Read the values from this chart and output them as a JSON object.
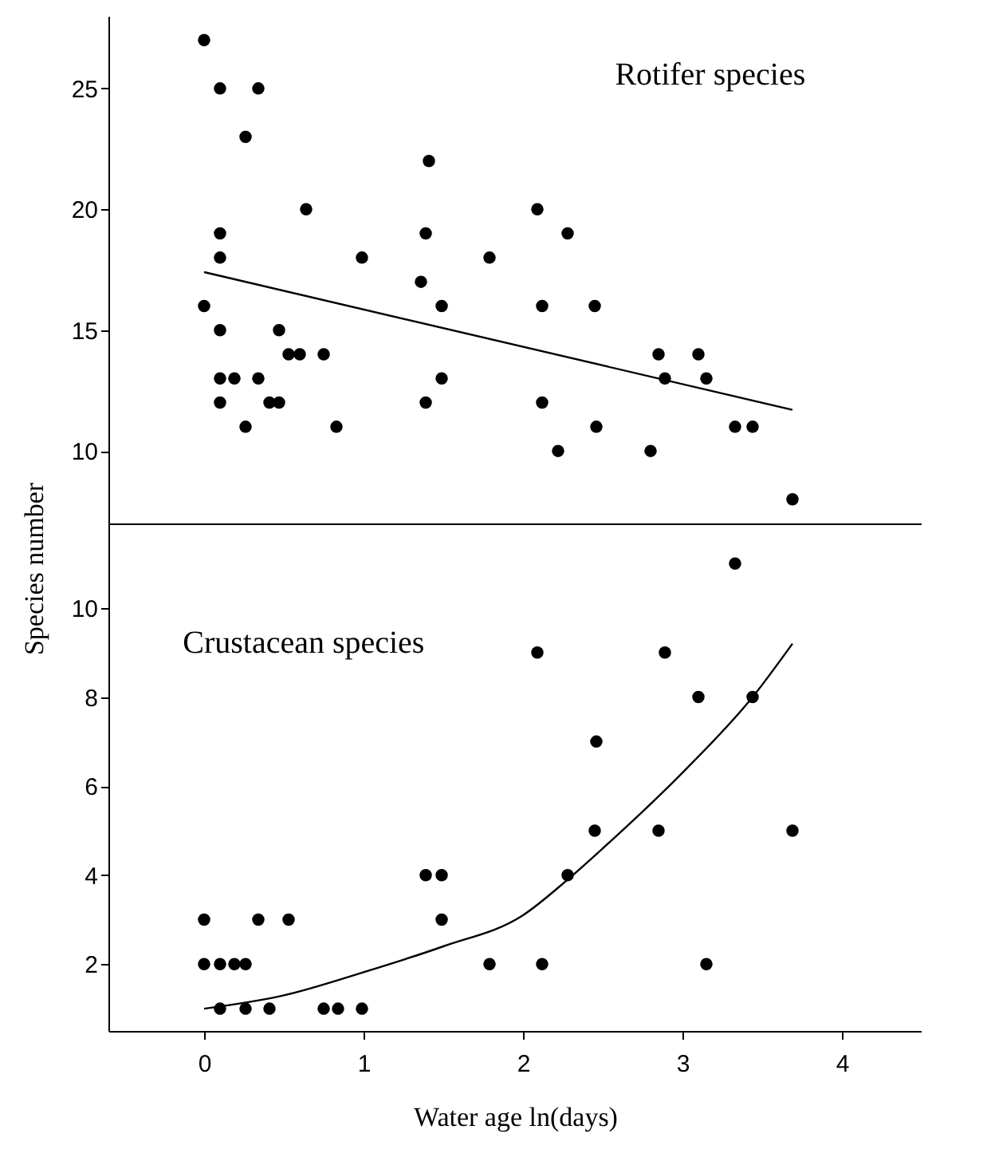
{
  "chart_data": [
    {
      "type": "scatter",
      "xlim": [
        -0.6,
        4.5
      ],
      "ylim": [
        7,
        28
      ],
      "yticks": [
        10,
        15,
        20,
        25
      ],
      "tick_labels": "y",
      "ylabel": "Species number",
      "annotations": [
        "Rotifer species"
      ],
      "grid": false,
      "series": [
        {
          "type": "scatter",
          "marker": "circle",
          "color": "#000000",
          "x": [
            0,
            0.1,
            0.34,
            0.26,
            0.64,
            0.1,
            1.39,
            0.1,
            0.99,
            1.79,
            1.41,
            1.36,
            0,
            1.49,
            0.1,
            0.47,
            0.1,
            0.19,
            0.34,
            1.49,
            0.53,
            0.6,
            0.75,
            0.1,
            0.41,
            0.47,
            1.39,
            0.26,
            0.83,
            2.09,
            2.28,
            2.12,
            2.45,
            2.85,
            3.1,
            2.89,
            3.15,
            2.12,
            2.46,
            3.33,
            3.44,
            2.22,
            2.8,
            3.69
          ],
          "values": [
            27,
            25,
            25,
            23,
            20,
            19,
            19,
            18,
            18,
            18,
            22,
            17,
            16,
            16,
            15,
            15,
            13,
            13,
            13,
            13,
            14,
            14,
            14,
            12,
            12,
            12,
            12,
            11,
            11,
            20,
            19,
            16,
            16,
            14,
            14,
            13,
            13,
            12,
            11,
            11,
            11,
            10,
            10,
            8
          ]
        },
        {
          "type": "line",
          "marker": "none",
          "line_style": "solid",
          "color": "#000000",
          "x": [
            0,
            3.69
          ],
          "values": [
            17.4,
            11.7
          ]
        }
      ]
    },
    {
      "type": "scatter",
      "xlim": [
        -0.6,
        4.5
      ],
      "ylim": [
        0.5,
        11.9
      ],
      "xticks": [
        0,
        1,
        2,
        3,
        4
      ],
      "yticks": [
        2,
        4,
        6,
        8,
        10
      ],
      "xlabel": "Water age ln(days)",
      "annotations": [
        "Crustacean species"
      ],
      "grid": false,
      "series": [
        {
          "type": "scatter",
          "marker": "circle",
          "color": "#000000",
          "x": [
            0.1,
            0.26,
            0.41,
            0.75,
            0.84,
            0.99,
            0,
            0.1,
            0.19,
            0.26,
            1.79,
            2.12,
            3.15,
            0,
            0.34,
            0.53,
            1.49,
            1.39,
            1.49,
            2.28,
            2.45,
            2.85,
            3.69,
            2.46,
            3.1,
            3.44,
            2.09,
            2.89,
            3.33
          ],
          "values": [
            1,
            1,
            1,
            1,
            1,
            1,
            2,
            2,
            2,
            2,
            2,
            2,
            2,
            3,
            3,
            3,
            3,
            4,
            4,
            4,
            5,
            5,
            5,
            7,
            8,
            8,
            9,
            9,
            11
          ]
        },
        {
          "type": "line",
          "marker": "none",
          "line_style": "solid",
          "color": "#000000",
          "x": [
            0,
            0.5,
            1,
            1.5,
            2,
            2.28,
            2.5,
            3,
            3.44,
            3.69
          ],
          "values": [
            1.0,
            1.3,
            1.82,
            2.4,
            3.1,
            3.9,
            4.6,
            6.3,
            8.0,
            9.2
          ]
        }
      ]
    }
  ]
}
